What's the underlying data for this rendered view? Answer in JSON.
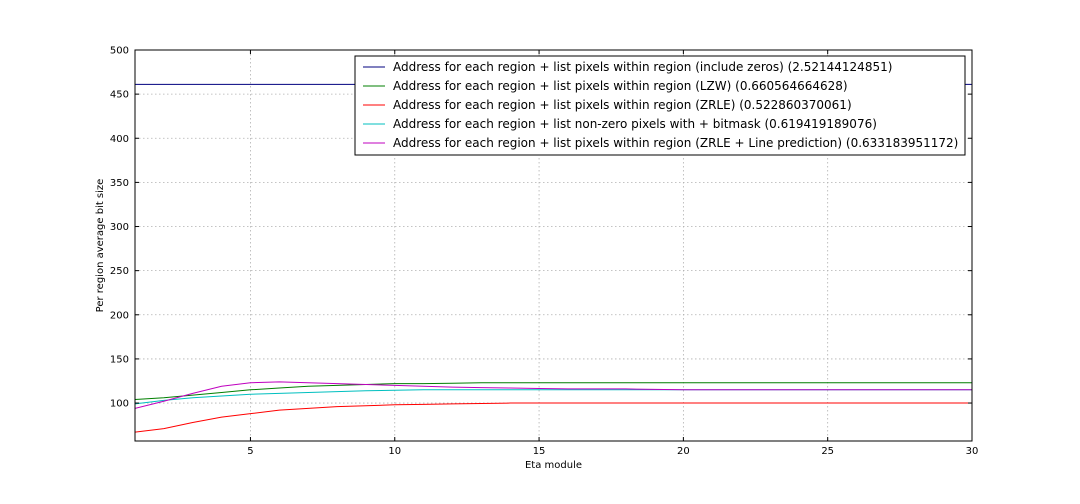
{
  "chart_data": {
    "type": "line",
    "xlabel": "Eta module",
    "ylabel": "Per region average bit size",
    "xlim": [
      1,
      30
    ],
    "ylim": [
      57,
      500
    ],
    "xticks": [
      5,
      10,
      15,
      20,
      25,
      30
    ],
    "yticks": [
      100,
      150,
      200,
      250,
      300,
      350,
      400,
      450,
      500
    ],
    "grid": true,
    "legend_position": "top-right",
    "x": [
      1,
      2,
      3,
      4,
      5,
      6,
      7,
      8,
      9,
      10,
      11,
      12,
      13,
      14,
      15,
      16,
      17,
      18,
      19,
      20,
      21,
      22,
      23,
      24,
      25,
      26,
      27,
      28,
      29,
      30
    ],
    "series": [
      {
        "name": "Address for each region + list pixels within region (include zeros) (2.52144124851)",
        "color": "#00007f",
        "values": [
          461,
          461,
          461,
          461,
          461,
          461,
          461,
          461,
          461,
          461,
          461,
          461,
          461,
          461,
          461,
          461,
          461,
          461,
          461,
          461,
          461,
          461,
          461,
          461,
          461,
          461,
          461,
          461,
          461,
          461
        ]
      },
      {
        "name": "Address for each region + list pixels within region (LZW) (0.660564664628)",
        "color": "#007f00",
        "values": [
          104,
          106,
          109,
          112,
          115,
          117,
          119,
          120,
          121,
          122,
          122,
          122.5,
          123,
          123,
          123,
          123,
          123,
          123,
          123,
          123,
          123,
          123,
          123,
          123,
          123,
          123,
          123,
          123,
          123,
          123
        ]
      },
      {
        "name": "Address for each region + list pixels within region (ZRLE) (0.522860370061)",
        "color": "#ff0000",
        "values": [
          67,
          71,
          78,
          84,
          88,
          92,
          94,
          96,
          97,
          98,
          98.5,
          99,
          99.5,
          100,
          100,
          100,
          100,
          100,
          100,
          100,
          100,
          100,
          100,
          100,
          100,
          100,
          100,
          100,
          100,
          100
        ]
      },
      {
        "name": "Address for each region + list non-zero pixels with + bitmask (0.619419189076)",
        "color": "#00bfbf",
        "values": [
          99,
          103,
          106,
          108,
          110,
          111,
          112,
          113,
          114,
          114.5,
          115,
          115,
          115,
          115,
          115,
          115,
          115,
          115,
          115,
          115,
          115,
          115,
          115,
          115,
          115,
          115,
          115,
          115,
          115,
          115
        ]
      },
      {
        "name": "Address for each region + list pixels within region (ZRLE + Line prediction) (0.633183951172)",
        "color": "#bf00bf",
        "values": [
          94,
          102,
          111,
          119,
          123,
          124,
          123,
          122,
          121,
          120,
          119,
          118,
          117.5,
          117,
          116.5,
          116,
          116,
          116,
          115.5,
          115,
          115,
          115,
          115,
          115,
          115,
          115,
          115,
          115,
          115,
          115
        ]
      }
    ]
  }
}
